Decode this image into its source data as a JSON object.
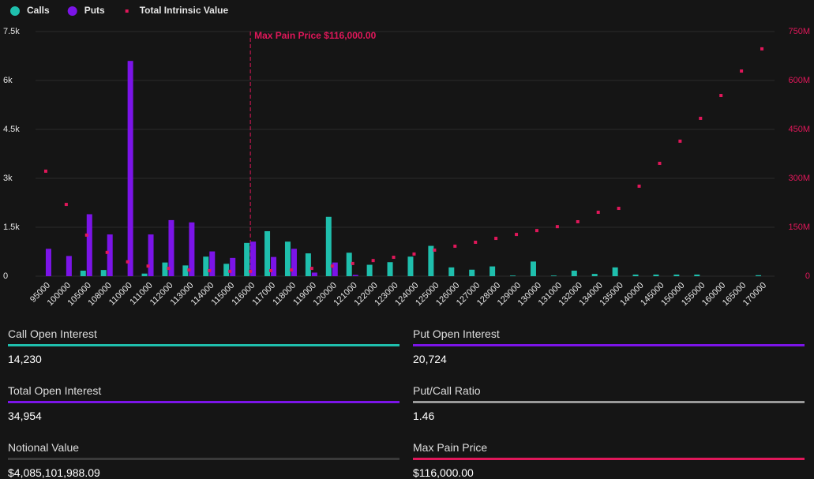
{
  "chart_data": {
    "type": "bar",
    "categories": [
      "95000",
      "100000",
      "105000",
      "108000",
      "110000",
      "111000",
      "112000",
      "113000",
      "114000",
      "115000",
      "116000",
      "117000",
      "118000",
      "119000",
      "120000",
      "121000",
      "122000",
      "123000",
      "124000",
      "125000",
      "126000",
      "127000",
      "128000",
      "129000",
      "130000",
      "131000",
      "132000",
      "134000",
      "135000",
      "140000",
      "145000",
      "150000",
      "155000",
      "160000",
      "165000",
      "170000"
    ],
    "series": [
      {
        "name": "Calls",
        "color": "#1fbfad",
        "values": [
          0,
          0,
          170,
          190,
          0,
          80,
          420,
          330,
          600,
          380,
          1020,
          1380,
          1060,
          700,
          1820,
          720,
          350,
          430,
          600,
          930,
          270,
          200,
          300,
          20,
          450,
          20,
          170,
          70,
          270,
          50,
          50,
          50,
          50,
          0,
          0,
          30
        ]
      },
      {
        "name": "Puts",
        "color": "#7b14e8",
        "values": [
          840,
          620,
          1900,
          1280,
          6600,
          1280,
          1720,
          1650,
          760,
          560,
          1060,
          590,
          840,
          110,
          420,
          40,
          0,
          0,
          0,
          0,
          0,
          0,
          0,
          0,
          0,
          0,
          0,
          0,
          0,
          0,
          0,
          0,
          0,
          0,
          0,
          0
        ]
      },
      {
        "name": "Total Intrinsic Value",
        "color": "#e0175a",
        "axis": "y2",
        "values": [
          322000000,
          220000000,
          126000000,
          73000000,
          44000000,
          31000000,
          24000000,
          19000000,
          17000000,
          15000000,
          15000000,
          17000000,
          19000000,
          24000000,
          31000000,
          39000000,
          48000000,
          58000000,
          68000000,
          80000000,
          92000000,
          104000000,
          116000000,
          128000000,
          140000000,
          152000000,
          167000000,
          196000000,
          208000000,
          276000000,
          346000000,
          414000000,
          484000000,
          554000000,
          629000000,
          697000000
        ]
      }
    ],
    "ylim": [
      0,
      7500
    ],
    "yticks": [
      0,
      {
        "value": 1500,
        "label": "1.5k"
      },
      {
        "value": 3000,
        "label": "3k"
      },
      {
        "value": 4500,
        "label": "4.5k"
      },
      {
        "value": 6000,
        "label": "6k"
      },
      {
        "value": 7500,
        "label": "7.5k"
      }
    ],
    "y2lim": [
      0,
      750000000
    ],
    "y2ticks": [
      0,
      {
        "value": 150000000,
        "label": "150M"
      },
      {
        "value": 300000000,
        "label": "300M"
      },
      {
        "value": 450000000,
        "label": "450M"
      },
      {
        "value": 600000000,
        "label": "600M"
      },
      {
        "value": 750000000,
        "label": "750M"
      }
    ],
    "grid": true,
    "annotation": {
      "text": "Max Pain Price $116,000.00",
      "x": "116000",
      "color": "#e0175a"
    }
  },
  "stats": [
    {
      "label": "Call Open Interest",
      "value": "14,230",
      "color": "#1fbfad"
    },
    {
      "label": "Put Open Interest",
      "value": "20,724",
      "color": "#7b14e8"
    },
    {
      "label": "Total Open Interest",
      "value": "34,954",
      "color": "#7b14e8"
    },
    {
      "label": "Put/Call Ratio",
      "value": "1.46",
      "color": "#9a9a9a"
    },
    {
      "label": "Notional Value",
      "value": "$4,085,101,988.09",
      "color": "#3a3a3a"
    },
    {
      "label": "Max Pain Price",
      "value": "$116,000.00",
      "color": "#e0175a"
    }
  ]
}
